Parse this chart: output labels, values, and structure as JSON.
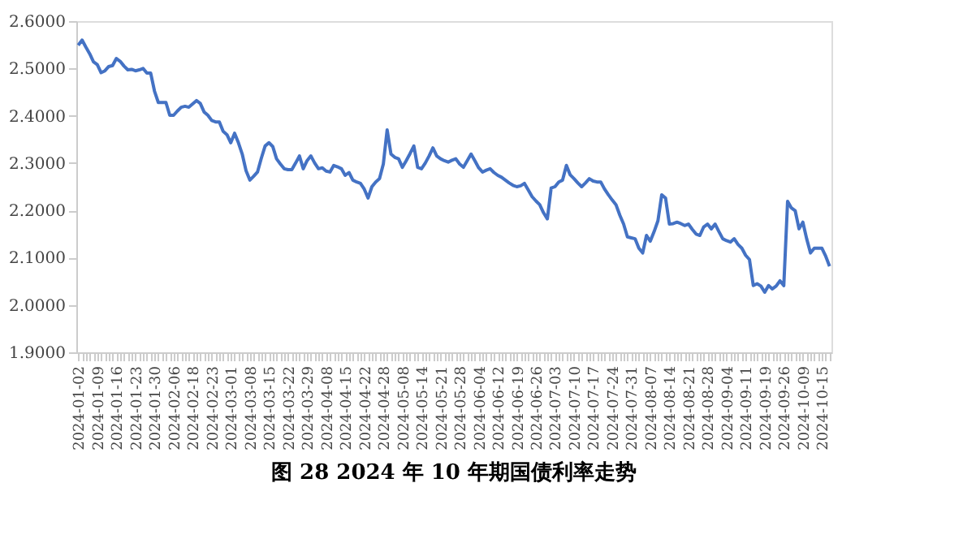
{
  "chart_data": {
    "type": "line",
    "title": "图 28 2024 年 10 年期国债利率走势",
    "categories": [
      "2024-01-02",
      null,
      null,
      null,
      null,
      "2024-01-09",
      null,
      null,
      null,
      null,
      "2024-01-16",
      null,
      null,
      null,
      null,
      "2024-01-23",
      null,
      null,
      null,
      null,
      "2024-01-30",
      null,
      null,
      null,
      null,
      "2024-02-06",
      null,
      null,
      null,
      null,
      "2024-02-18",
      null,
      null,
      null,
      null,
      "2024-02-23",
      null,
      null,
      null,
      null,
      "2024-03-01",
      null,
      null,
      null,
      null,
      "2024-03-08",
      null,
      null,
      null,
      null,
      "2024-03-15",
      null,
      null,
      null,
      null,
      "2024-03-22",
      null,
      null,
      null,
      null,
      "2024-03-29",
      null,
      null,
      null,
      null,
      "2024-04-08",
      null,
      null,
      null,
      null,
      "2024-04-15",
      null,
      null,
      null,
      null,
      "2024-04-22",
      null,
      null,
      null,
      null,
      "2024-04-28",
      null,
      null,
      null,
      null,
      "2024-05-08",
      null,
      null,
      null,
      null,
      "2024-05-14",
      null,
      null,
      null,
      null,
      "2024-05-21",
      null,
      null,
      null,
      null,
      "2024-05-28",
      null,
      null,
      null,
      null,
      "2024-06-04",
      null,
      null,
      null,
      null,
      "2024-06-12",
      null,
      null,
      null,
      null,
      "2024-06-19",
      null,
      null,
      null,
      null,
      "2024-06-26",
      null,
      null,
      null,
      null,
      "2024-07-03",
      null,
      null,
      null,
      null,
      "2024-07-10",
      null,
      null,
      null,
      null,
      "2024-07-17",
      null,
      null,
      null,
      null,
      "2024-07-24",
      null,
      null,
      null,
      null,
      "2024-07-31",
      null,
      null,
      null,
      null,
      "2024-08-07",
      null,
      null,
      null,
      null,
      "2024-08-14",
      null,
      null,
      null,
      null,
      "2024-08-21",
      null,
      null,
      null,
      null,
      "2024-08-28",
      null,
      null,
      null,
      null,
      "2024-09-04",
      null,
      null,
      null,
      null,
      "2024-09-11",
      null,
      null,
      null,
      null,
      "2024-09-19",
      null,
      null,
      null,
      null,
      "2024-09-26",
      null,
      null,
      null,
      null,
      "2024-10-09",
      null,
      null,
      null,
      null,
      "2024-10-15",
      null,
      null
    ],
    "series": [
      {
        "color": "#4472c4",
        "values": [
          2.549,
          2.56,
          2.545,
          2.531,
          2.514,
          2.508,
          2.491,
          2.495,
          2.504,
          2.506,
          2.521,
          2.515,
          2.505,
          2.497,
          2.498,
          2.495,
          2.497,
          2.5,
          2.49,
          2.49,
          2.452,
          2.428,
          2.428,
          2.428,
          2.401,
          2.401,
          2.41,
          2.418,
          2.42,
          2.418,
          2.425,
          2.432,
          2.426,
          2.408,
          2.401,
          2.39,
          2.387,
          2.387,
          2.367,
          2.36,
          2.343,
          2.363,
          2.343,
          2.319,
          2.284,
          2.264,
          2.272,
          2.281,
          2.31,
          2.336,
          2.343,
          2.335,
          2.309,
          2.298,
          2.288,
          2.286,
          2.286,
          2.3,
          2.315,
          2.288,
          2.305,
          2.315,
          2.3,
          2.288,
          2.29,
          2.283,
          2.281,
          2.295,
          2.292,
          2.288,
          2.274,
          2.28,
          2.264,
          2.26,
          2.257,
          2.245,
          2.226,
          2.25,
          2.26,
          2.267,
          2.298,
          2.37,
          2.319,
          2.312,
          2.309,
          2.291,
          2.305,
          2.32,
          2.336,
          2.291,
          2.288,
          2.3,
          2.315,
          2.332,
          2.315,
          2.309,
          2.305,
          2.302,
          2.306,
          2.309,
          2.298,
          2.291,
          2.305,
          2.319,
          2.305,
          2.29,
          2.281,
          2.285,
          2.288,
          2.28,
          2.274,
          2.27,
          2.264,
          2.258,
          2.253,
          2.25,
          2.252,
          2.257,
          2.243,
          2.229,
          2.22,
          2.212,
          2.195,
          2.182,
          2.247,
          2.25,
          2.26,
          2.264,
          2.295,
          2.275,
          2.267,
          2.258,
          2.25,
          2.258,
          2.267,
          2.262,
          2.26,
          2.26,
          2.245,
          2.233,
          2.222,
          2.212,
          2.19,
          2.171,
          2.144,
          2.142,
          2.14,
          2.12,
          2.11,
          2.147,
          2.135,
          2.155,
          2.178,
          2.233,
          2.226,
          2.171,
          2.172,
          2.175,
          2.172,
          2.168,
          2.171,
          2.16,
          2.15,
          2.147,
          2.165,
          2.171,
          2.161,
          2.171,
          2.155,
          2.14,
          2.136,
          2.133,
          2.14,
          2.128,
          2.12,
          2.105,
          2.096,
          2.041,
          2.045,
          2.04,
          2.027,
          2.041,
          2.034,
          2.04,
          2.051,
          2.041,
          2.219,
          2.205,
          2.199,
          2.161,
          2.175,
          2.14,
          2.11,
          2.12,
          2.12,
          2.12,
          2.103,
          2.082
        ]
      }
    ],
    "ylim": [
      1.9,
      2.6
    ],
    "yticks": [
      {
        "value": 1.9,
        "label": "1.9000"
      },
      {
        "value": 2.0,
        "label": "2.0000"
      },
      {
        "value": 2.1,
        "label": "2.1000"
      },
      {
        "value": 2.2,
        "label": "2.2000"
      },
      {
        "value": 2.3,
        "label": "2.3000"
      },
      {
        "value": 2.4,
        "label": "2.4000"
      },
      {
        "value": 2.5,
        "label": "2.5000"
      },
      {
        "value": 2.6,
        "label": "2.6000"
      }
    ],
    "grid": false,
    "line_style": "solid",
    "marker": "none"
  }
}
